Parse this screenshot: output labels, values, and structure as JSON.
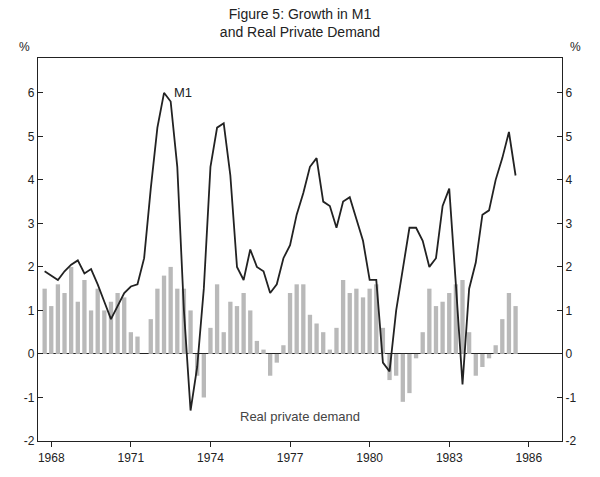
{
  "chart_data": {
    "type": "bar_line",
    "title": "Figure 5: Growth in M1\nand Real Private Demand",
    "ylabel": "%",
    "y2label": "%",
    "x": [
      1967.75,
      1968,
      1968.25,
      1968.5,
      1968.75,
      1969,
      1969.25,
      1969.5,
      1969.75,
      1970,
      1970.25,
      1970.5,
      1970.75,
      1971,
      1971.25,
      1971.5,
      1971.75,
      1972,
      1972.25,
      1972.5,
      1972.75,
      1973,
      1973.25,
      1973.5,
      1973.75,
      1974,
      1974.25,
      1974.5,
      1974.75,
      1975,
      1975.25,
      1975.5,
      1975.75,
      1976,
      1976.25,
      1976.5,
      1976.75,
      1977,
      1977.25,
      1977.5,
      1977.75,
      1978,
      1978.25,
      1978.5,
      1978.75,
      1979,
      1979.25,
      1979.5,
      1979.75,
      1980,
      1980.25,
      1980.5,
      1980.75,
      1981,
      1981.25,
      1981.5,
      1981.75,
      1982,
      1982.25,
      1982.5,
      1982.75,
      1983,
      1983.25,
      1983.5,
      1983.75,
      1984,
      1984.25,
      1984.5,
      1984.75,
      1985,
      1985.25,
      1985.5
    ],
    "series": [
      {
        "name": "Real private demand",
        "type": "bar",
        "color": "#b9b9b9",
        "values": [
          1.5,
          1.1,
          1.6,
          1.4,
          2.0,
          1.2,
          1.7,
          1.0,
          1.5,
          1.0,
          1.2,
          1.4,
          1.3,
          0.5,
          0.4,
          null,
          0.8,
          1.5,
          1.8,
          2.0,
          1.5,
          1.5,
          1.0,
          -0.5,
          -1.0,
          0.6,
          1.6,
          0.5,
          1.2,
          1.1,
          1.4,
          1.0,
          0.3,
          0.1,
          -0.5,
          -0.2,
          0.2,
          1.4,
          1.6,
          1.6,
          0.9,
          0.7,
          0.5,
          0.1,
          0.6,
          1.7,
          1.4,
          1.5,
          1.3,
          1.5,
          1.6,
          0.6,
          -0.6,
          -0.5,
          -1.1,
          -0.9,
          -0.1,
          0.5,
          1.5,
          1.1,
          1.2,
          1.4,
          1.6,
          1.7,
          0.5,
          -0.5,
          -0.3,
          -0.1,
          0.2,
          0.8,
          1.4,
          1.1
        ]
      },
      {
        "name": "M1",
        "type": "line",
        "color": "#222222",
        "values": [
          1.9,
          1.8,
          1.7,
          1.9,
          2.05,
          2.15,
          1.85,
          1.95,
          1.6,
          1.2,
          0.8,
          1.1,
          1.4,
          1.55,
          1.6,
          2.2,
          3.8,
          5.2,
          6.0,
          5.8,
          4.3,
          1.0,
          -1.3,
          -0.3,
          1.5,
          4.3,
          5.2,
          5.3,
          4.1,
          2.0,
          1.7,
          2.4,
          2.0,
          1.9,
          1.4,
          1.6,
          2.2,
          2.5,
          3.2,
          3.7,
          4.3,
          4.5,
          3.5,
          3.4,
          2.9,
          3.5,
          3.6,
          3.1,
          2.6,
          1.7,
          1.7,
          -0.2,
          -0.4,
          1.0,
          2.0,
          2.9,
          2.9,
          2.6,
          2.0,
          2.2,
          3.4,
          3.8,
          1.6,
          -0.7,
          1.5,
          2.1,
          3.2,
          3.3,
          4.0,
          4.5,
          5.1,
          4.1
        ]
      }
    ],
    "xlim": [
      1967.5,
      1987.25
    ],
    "xticks": [
      1968,
      1971,
      1974,
      1977,
      1980,
      1983,
      1986
    ],
    "ylim": [
      -2,
      6.8
    ],
    "yticks": [
      -2,
      -1,
      0,
      1,
      2,
      3,
      4,
      5,
      6
    ],
    "y2lim": [
      -2,
      6.8
    ],
    "y2ticks": [
      -2,
      -1,
      0,
      1,
      2,
      3,
      4,
      5,
      6
    ],
    "grid": false
  }
}
